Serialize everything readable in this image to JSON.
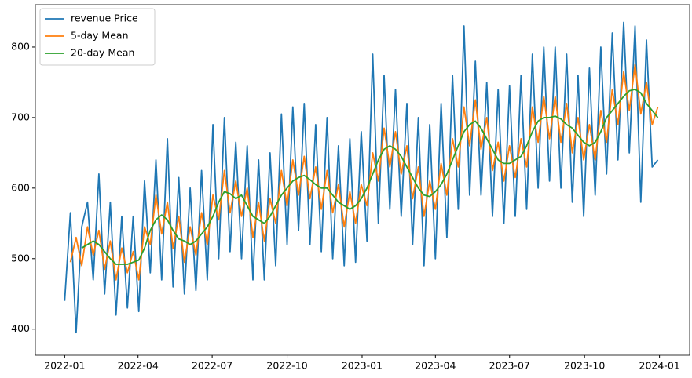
{
  "chart_data": {
    "type": "line",
    "x": [
      0,
      7,
      14,
      21,
      28,
      35,
      42,
      49,
      56,
      63,
      70,
      77,
      84,
      91,
      98,
      105,
      112,
      119,
      126,
      133,
      140,
      147,
      154,
      161,
      168,
      175,
      182,
      189,
      196,
      203,
      210,
      217,
      224,
      231,
      238,
      245,
      252,
      259,
      266,
      273,
      280,
      287,
      294,
      301,
      308,
      315,
      322,
      329,
      336,
      343,
      350,
      357,
      364,
      371,
      378,
      385,
      392,
      399,
      406,
      413,
      420,
      427,
      434,
      441,
      448,
      455,
      462,
      469,
      476,
      483,
      490,
      497,
      504,
      511,
      518,
      525,
      532,
      539,
      546,
      553,
      560,
      567,
      574,
      581,
      588,
      595,
      602,
      609,
      616,
      623,
      630,
      637,
      644,
      651,
      658,
      665,
      672,
      679,
      686,
      693,
      700,
      707,
      714,
      721,
      728
    ],
    "series": [
      {
        "name": "revenue Price",
        "color": "#1f77b4",
        "values": [
          440,
          565,
          395,
          545,
          580,
          470,
          620,
          450,
          580,
          420,
          560,
          430,
          560,
          425,
          610,
          480,
          640,
          470,
          670,
          460,
          615,
          450,
          600,
          455,
          625,
          470,
          690,
          500,
          700,
          510,
          665,
          500,
          660,
          470,
          640,
          470,
          650,
          490,
          705,
          520,
          715,
          540,
          720,
          520,
          690,
          510,
          700,
          500,
          660,
          490,
          670,
          495,
          680,
          525,
          790,
          550,
          760,
          570,
          740,
          560,
          720,
          520,
          700,
          490,
          690,
          500,
          720,
          530,
          760,
          570,
          830,
          590,
          780,
          590,
          750,
          560,
          740,
          550,
          745,
          560,
          760,
          570,
          790,
          600,
          800,
          610,
          800,
          600,
          790,
          580,
          760,
          560,
          770,
          590,
          800,
          620,
          820,
          640,
          835,
          650,
          830,
          580,
          810,
          630,
          640
        ]
      },
      {
        "name": "5-day Mean",
        "color": "#ff7f0e",
        "values": [
          null,
          495,
          530,
          490,
          545,
          505,
          540,
          485,
          525,
          470,
          515,
          480,
          510,
          470,
          545,
          520,
          590,
          535,
          580,
          515,
          560,
          495,
          545,
          505,
          565,
          520,
          590,
          555,
          625,
          565,
          610,
          560,
          600,
          530,
          580,
          525,
          585,
          550,
          625,
          575,
          640,
          590,
          645,
          585,
          630,
          570,
          625,
          565,
          605,
          545,
          595,
          550,
          605,
          575,
          650,
          610,
          685,
          630,
          680,
          620,
          660,
          585,
          630,
          560,
          610,
          570,
          635,
          590,
          670,
          630,
          715,
          660,
          725,
          655,
          700,
          625,
          665,
          610,
          660,
          615,
          670,
          630,
          715,
          665,
          730,
          670,
          730,
          665,
          720,
          650,
          700,
          640,
          690,
          640,
          710,
          665,
          740,
          690,
          765,
          710,
          775,
          705,
          750,
          690,
          715
        ]
      },
      {
        "name": "20-day Mean",
        "color": "#2ca02c",
        "values": [
          null,
          null,
          null,
          515,
          520,
          525,
          520,
          510,
          500,
          492,
          492,
          492,
          495,
          498,
          515,
          540,
          555,
          562,
          555,
          540,
          528,
          525,
          520,
          525,
          535,
          545,
          560,
          580,
          595,
          592,
          585,
          590,
          575,
          560,
          555,
          550,
          560,
          575,
          590,
          600,
          610,
          615,
          618,
          612,
          605,
          600,
          600,
          590,
          580,
          575,
          570,
          575,
          585,
          600,
          620,
          640,
          655,
          660,
          655,
          645,
          630,
          615,
          600,
          590,
          588,
          595,
          605,
          620,
          640,
          660,
          680,
          690,
          695,
          685,
          670,
          655,
          640,
          635,
          635,
          640,
          645,
          660,
          680,
          695,
          700,
          700,
          702,
          698,
          690,
          685,
          675,
          665,
          660,
          665,
          680,
          700,
          710,
          720,
          730,
          738,
          740,
          735,
          720,
          710,
          700
        ]
      }
    ],
    "xlim": [
      -36,
      767
    ],
    "xticks": [
      {
        "value": 0,
        "label": "2022-01"
      },
      {
        "value": 90,
        "label": "2022-04"
      },
      {
        "value": 181,
        "label": "2022-07"
      },
      {
        "value": 273,
        "label": "2022-10"
      },
      {
        "value": 365,
        "label": "2023-01"
      },
      {
        "value": 455,
        "label": "2023-04"
      },
      {
        "value": 546,
        "label": "2023-07"
      },
      {
        "value": 638,
        "label": "2023-10"
      },
      {
        "value": 730,
        "label": "2024-01"
      }
    ],
    "ylim": [
      363,
      860
    ],
    "yticks": [
      400,
      500,
      600,
      700,
      800
    ],
    "legend": "upper left"
  }
}
